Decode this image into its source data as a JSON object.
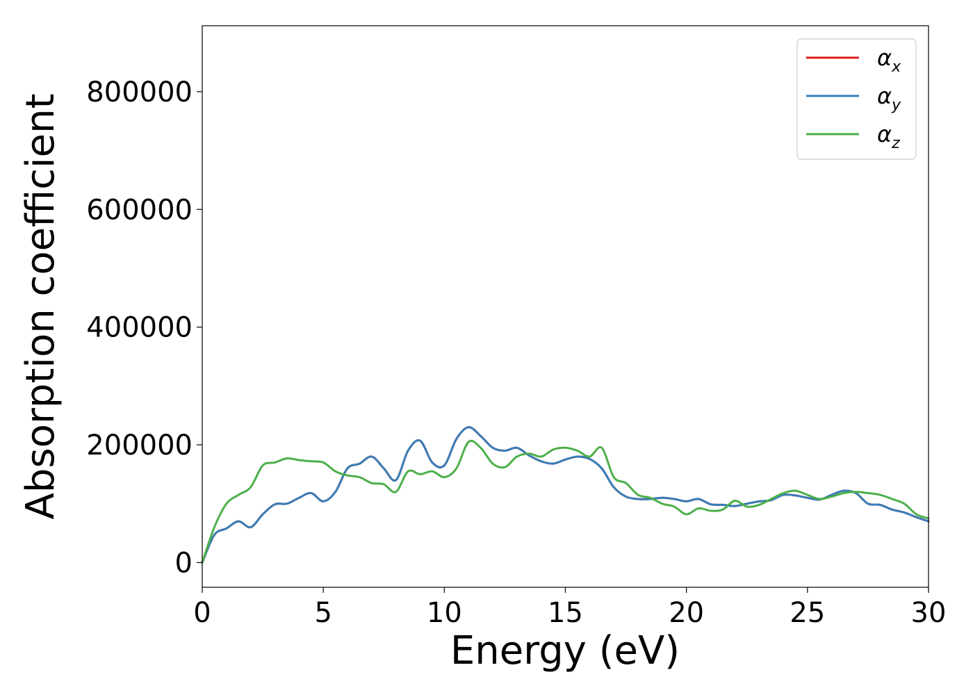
{
  "chart_data": {
    "type": "line",
    "title": "",
    "xlabel": "Energy (eV)",
    "ylabel": "Absorption coefficient",
    "xlim": [
      0,
      30
    ],
    "ylim": [
      -42000,
      912000
    ],
    "xticks": [
      0,
      5,
      10,
      15,
      20,
      25,
      30
    ],
    "yticks": [
      0,
      200000,
      400000,
      600000,
      800000
    ],
    "xtick_labels": [
      "0",
      "5",
      "10",
      "15",
      "20",
      "25",
      "30"
    ],
    "ytick_labels": [
      "0",
      "200000",
      "400000",
      "600000",
      "800000"
    ],
    "grid": false,
    "legend_position": "top-right",
    "series": [
      {
        "name": "α",
        "subscript": "x",
        "color": "#e41a1c",
        "x": [
          0,
          0.5,
          1,
          1.5,
          2,
          2.5,
          3,
          3.5,
          4,
          4.5,
          5,
          5.5,
          6,
          6.5,
          7,
          7.5,
          8,
          8.5,
          9,
          9.5,
          10,
          10.5,
          11,
          11.5,
          12,
          12.5,
          13,
          13.5,
          14,
          14.5,
          15,
          15.5,
          16,
          16.5,
          17,
          17.5,
          18,
          18.5,
          19,
          19.5,
          20,
          20.5,
          21,
          21.5,
          22,
          22.5,
          23,
          23.5,
          24,
          24.5,
          25,
          25.5,
          26,
          26.5,
          27,
          27.5,
          28,
          28.5,
          29,
          29.5,
          30
        ],
        "y": [
          0,
          47000,
          58000,
          70000,
          60000,
          82000,
          99000,
          100000,
          110000,
          118000,
          104000,
          120000,
          160000,
          168000,
          180000,
          160000,
          140000,
          190000,
          207000,
          170000,
          165000,
          210000,
          230000,
          215000,
          195000,
          190000,
          195000,
          182000,
          172000,
          168000,
          175000,
          180000,
          176000,
          160000,
          128000,
          112000,
          108000,
          108000,
          110000,
          108000,
          104000,
          108000,
          99000,
          98000,
          96000,
          100000,
          104000,
          106000,
          115000,
          114000,
          110000,
          107000,
          115000,
          122000,
          118000,
          100000,
          98000,
          90000,
          85000,
          77000,
          70000
        ]
      },
      {
        "name": "α",
        "subscript": "y",
        "color": "#377eb8",
        "x": [
          0,
          0.5,
          1,
          1.5,
          2,
          2.5,
          3,
          3.5,
          4,
          4.5,
          5,
          5.5,
          6,
          6.5,
          7,
          7.5,
          8,
          8.5,
          9,
          9.5,
          10,
          10.5,
          11,
          11.5,
          12,
          12.5,
          13,
          13.5,
          14,
          14.5,
          15,
          15.5,
          16,
          16.5,
          17,
          17.5,
          18,
          18.5,
          19,
          19.5,
          20,
          20.5,
          21,
          21.5,
          22,
          22.5,
          23,
          23.5,
          24,
          24.5,
          25,
          25.5,
          26,
          26.5,
          27,
          27.5,
          28,
          28.5,
          29,
          29.5,
          30
        ],
        "y": [
          0,
          47000,
          58000,
          70000,
          60000,
          82000,
          99000,
          100000,
          110000,
          118000,
          104000,
          120000,
          160000,
          168000,
          180000,
          160000,
          140000,
          190000,
          207000,
          170000,
          165000,
          210000,
          230000,
          215000,
          195000,
          190000,
          195000,
          182000,
          172000,
          168000,
          175000,
          180000,
          176000,
          160000,
          128000,
          112000,
          108000,
          108000,
          110000,
          108000,
          104000,
          108000,
          99000,
          98000,
          96000,
          100000,
          104000,
          106000,
          115000,
          114000,
          110000,
          107000,
          115000,
          122000,
          118000,
          100000,
          98000,
          90000,
          85000,
          77000,
          70000
        ]
      },
      {
        "name": "α",
        "subscript": "z",
        "color": "#4daf4a",
        "x": [
          0,
          0.5,
          1,
          1.5,
          2,
          2.5,
          3,
          3.5,
          4,
          4.5,
          5,
          5.5,
          6,
          6.5,
          7,
          7.5,
          8,
          8.5,
          9,
          9.5,
          10,
          10.5,
          11,
          11.5,
          12,
          12.5,
          13,
          13.5,
          14,
          14.5,
          15,
          15.5,
          16,
          16.5,
          17,
          17.5,
          18,
          18.5,
          19,
          19.5,
          20,
          20.5,
          21,
          21.5,
          22,
          22.5,
          23,
          23.5,
          24,
          24.5,
          25,
          25.5,
          26,
          26.5,
          27,
          27.5,
          28,
          28.5,
          29,
          29.5,
          30
        ],
        "y": [
          0,
          60000,
          100000,
          115000,
          128000,
          165000,
          170000,
          177000,
          174000,
          172000,
          170000,
          155000,
          148000,
          145000,
          135000,
          133000,
          120000,
          155000,
          150000,
          155000,
          145000,
          160000,
          205000,
          195000,
          168000,
          162000,
          180000,
          185000,
          180000,
          192000,
          195000,
          190000,
          180000,
          195000,
          145000,
          135000,
          115000,
          110000,
          100000,
          95000,
          82000,
          92000,
          88000,
          90000,
          105000,
          95000,
          98000,
          108000,
          118000,
          122000,
          115000,
          108000,
          112000,
          118000,
          120000,
          118000,
          115000,
          108000,
          100000,
          82000,
          75000
        ]
      }
    ]
  }
}
